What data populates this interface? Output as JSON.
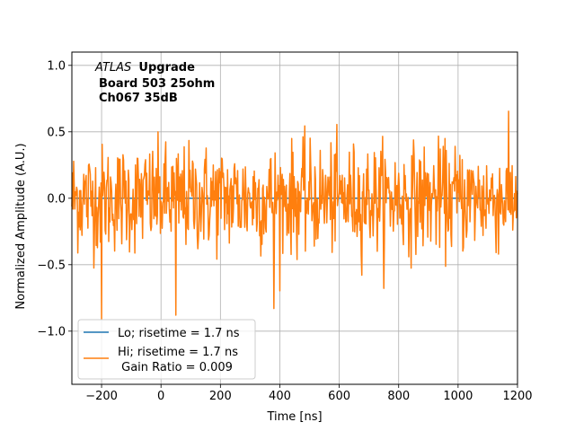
{
  "chart_data": {
    "type": "line",
    "title": "",
    "xlabel": "Time [ns]",
    "ylabel": "Normalized Amplitude (A.U.)",
    "xlim": [
      -300,
      1200
    ],
    "ylim": [
      -1.4,
      1.1
    ],
    "xticks": [
      -200,
      0,
      200,
      400,
      600,
      800,
      1000,
      1200
    ],
    "xtick_labels": [
      "−200",
      "0",
      "200",
      "400",
      "600",
      "800",
      "1000",
      "1200"
    ],
    "yticks": [
      -1.0,
      -0.5,
      0.0,
      0.5,
      1.0
    ],
    "ytick_labels": [
      "−1.0",
      "−0.5",
      "0.0",
      "0.5",
      "1.0"
    ],
    "grid": true,
    "legend_position": "lower-left",
    "annotation": {
      "line1_italic": "ATLAS",
      "line1_bold": "Upgrade",
      "line2": "Board 503 25ohm",
      "line3": "Ch067 35dB"
    },
    "series": [
      {
        "name": "Lo; risetime = 1.7 ns",
        "color": "#1f77b4",
        "x": [
          -300,
          1200
        ],
        "y": [
          0,
          0
        ]
      },
      {
        "name": "Hi; risetime = 1.7 ns",
        "name_line2": " Gain Ratio = 0.009",
        "color": "#ff7f0e",
        "noise": {
          "sample_step_ns": 2,
          "std": 0.2,
          "peaks": [
            {
              "x": 185,
              "y": 0.87
            },
            {
              "x": 565,
              "y": 0.86
            },
            {
              "x": -200,
              "y": -0.91
            },
            {
              "x": 50,
              "y": -0.88
            },
            {
              "x": 380,
              "y": -0.83
            },
            {
              "x": 645,
              "y": -0.83
            }
          ]
        }
      }
    ]
  }
}
